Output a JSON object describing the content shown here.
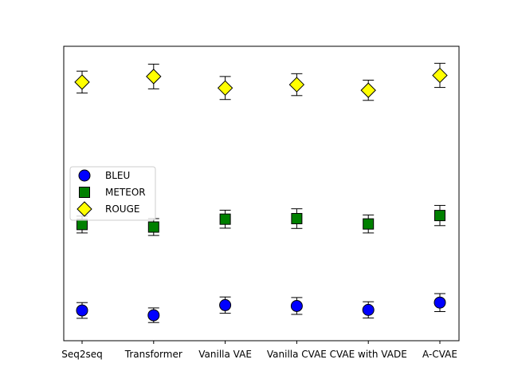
{
  "chart_data": {
    "type": "scatter",
    "title": "",
    "xlabel": "",
    "ylabel": "",
    "categories": [
      "Seq2seq",
      "Transformer",
      "Vanilla VAE",
      "Vanilla CVAE",
      "CVAE with VADE",
      "A-CVAE"
    ],
    "ylim": [
      0,
      100
    ],
    "y_ticks_visible": false,
    "grid": false,
    "legend": "center-left",
    "series": [
      {
        "name": "BLEU",
        "marker": "circle",
        "color": "#0000ff",
        "values": [
          8.5,
          6.8,
          10.4,
          10.1,
          8.7,
          11.3
        ],
        "errors": [
          2.8,
          2.6,
          2.9,
          3.0,
          2.9,
          3.2
        ]
      },
      {
        "name": "METEOR",
        "marker": "square",
        "color": "#008000",
        "values": [
          39.1,
          38.2,
          41.0,
          41.2,
          39.3,
          42.3
        ],
        "errors": [
          3.0,
          3.0,
          3.2,
          3.5,
          3.2,
          3.6
        ]
      },
      {
        "name": "ROUGE",
        "marker": "diamond",
        "color": "#ffff00",
        "values": [
          89.8,
          91.8,
          87.7,
          88.9,
          86.9,
          92.2
        ],
        "errors": [
          3.9,
          4.4,
          4.1,
          3.9,
          3.6,
          4.3
        ]
      }
    ]
  }
}
